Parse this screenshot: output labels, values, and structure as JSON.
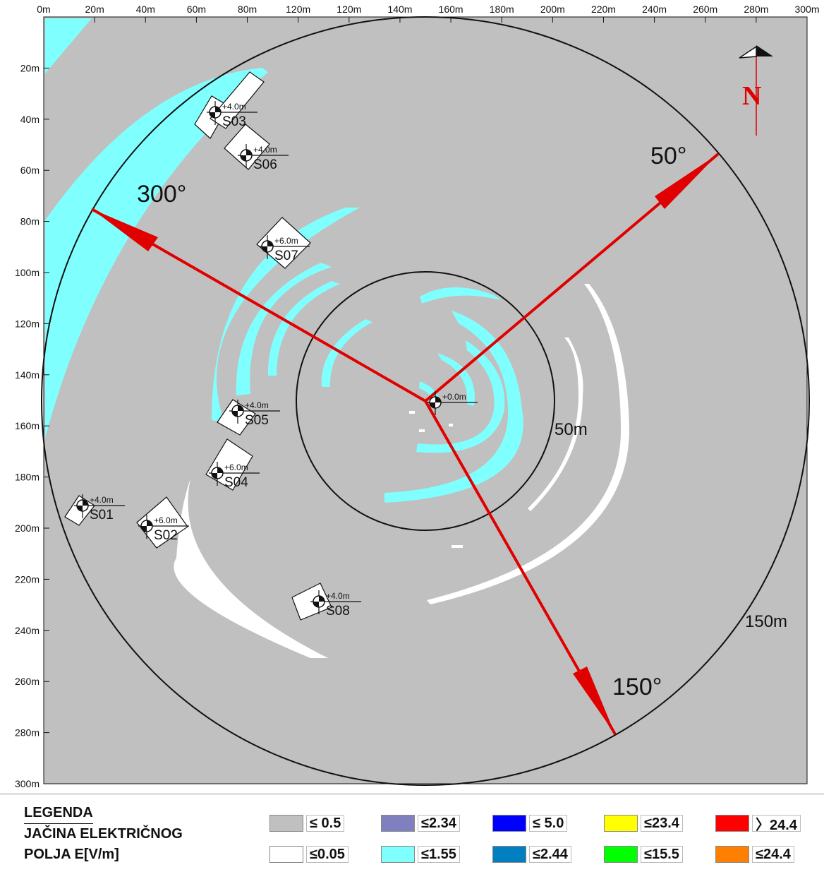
{
  "map": {
    "x_ticks": [
      "0m",
      "20m",
      "40m",
      "60m",
      "80m",
      "120m",
      "120m",
      "140m",
      "160m",
      "180m",
      "200m",
      "220m",
      "240m",
      "260m",
      "280m",
      "300m"
    ],
    "y_ticks": [
      "20m",
      "40m",
      "60m",
      "80m",
      "100m",
      "120m",
      "140m",
      "160m",
      "180m",
      "200m",
      "220m",
      "240m",
      "260m",
      "280m",
      "300m"
    ],
    "circle_labels": {
      "inner": "50m",
      "outer": "150m"
    },
    "direction_labels": {
      "d50": "50°",
      "d150": "150°",
      "d300": "300°"
    },
    "north_label": "N",
    "antenna_label": "+0.0m",
    "colors": {
      "background": "#c0c0c0",
      "cyan": "#80ffff",
      "white": "#ffffff",
      "arrow": "#e00000"
    },
    "sites": [
      {
        "id": "S01",
        "height": "+4.0m"
      },
      {
        "id": "S02",
        "height": "+6.0m"
      },
      {
        "id": "S03",
        "height": "+4.0m"
      },
      {
        "id": "S04",
        "height": "+6.0m"
      },
      {
        "id": "S05",
        "height": "+4.0m"
      },
      {
        "id": "S06",
        "height": "+4.0m"
      },
      {
        "id": "S07",
        "height": "+6.0m"
      },
      {
        "id": "S08",
        "height": "+4.0m"
      }
    ]
  },
  "legend": {
    "title_lines": [
      "LEGENDA",
      "JAČINA ELEKTRIČNOG",
      "POLJA E[V/m]"
    ],
    "items": [
      {
        "color": "#c0c0c0",
        "label": "≤ 0.5"
      },
      {
        "color": "#8080c0",
        "label": "≤2.34"
      },
      {
        "color": "#0000ff",
        "label": "≤ 5.0"
      },
      {
        "color": "#ffff00",
        "label": "≤23.4"
      },
      {
        "color": "#ff0000",
        "label": "〉24.4"
      },
      {
        "color": "#ffffff",
        "label": "≤0.05"
      },
      {
        "color": "#80ffff",
        "label": "≤1.55"
      },
      {
        "color": "#0080c0",
        "label": "≤2.44"
      },
      {
        "color": "#00ff00",
        "label": "≤15.5"
      },
      {
        "color": "#ff8000",
        "label": "≤24.4"
      }
    ]
  }
}
